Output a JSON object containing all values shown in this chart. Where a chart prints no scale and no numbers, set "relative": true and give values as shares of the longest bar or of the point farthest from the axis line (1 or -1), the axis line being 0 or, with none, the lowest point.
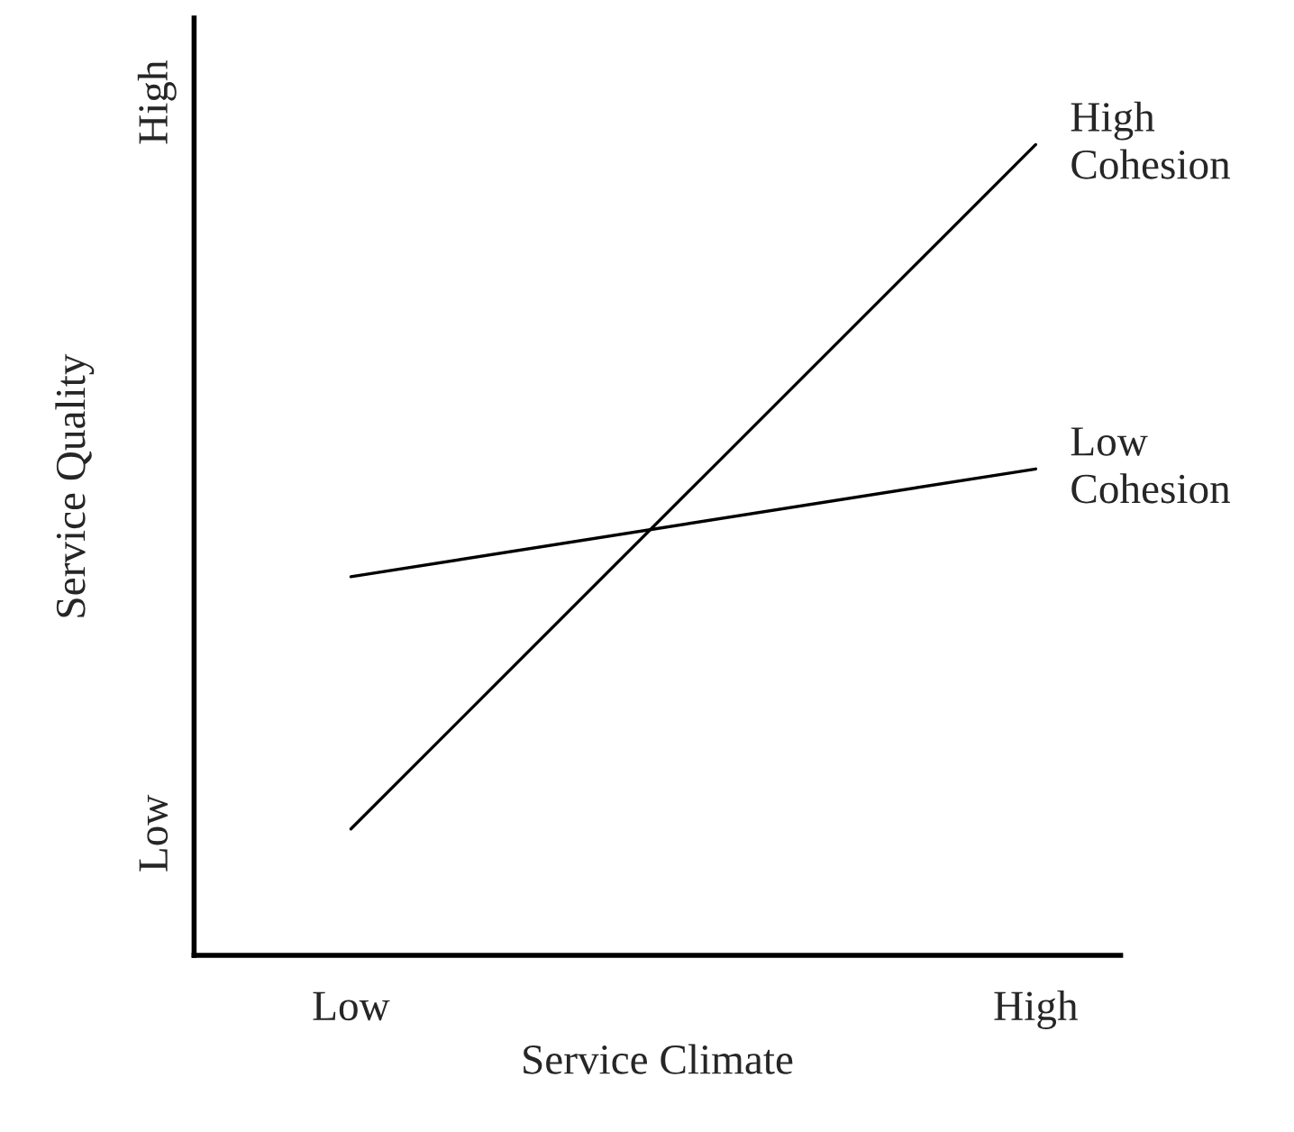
{
  "chart_data": {
    "type": "line",
    "relative": true,
    "xlabel": "Service Climate",
    "ylabel": "Service Quality",
    "categories": [
      "Low",
      "High"
    ],
    "series": [
      {
        "name": "High Cohesion",
        "color": "#000000",
        "values": [
          0.156,
          1
        ]
      },
      {
        "name": "Low Cohesion",
        "color": "#000000",
        "values": [
          0.467,
          0.6
        ]
      }
    ],
    "annotations": [
      "Low",
      "High"
    ],
    "grid": false,
    "legend": false,
    "marker": "none",
    "line_style": "solid"
  }
}
